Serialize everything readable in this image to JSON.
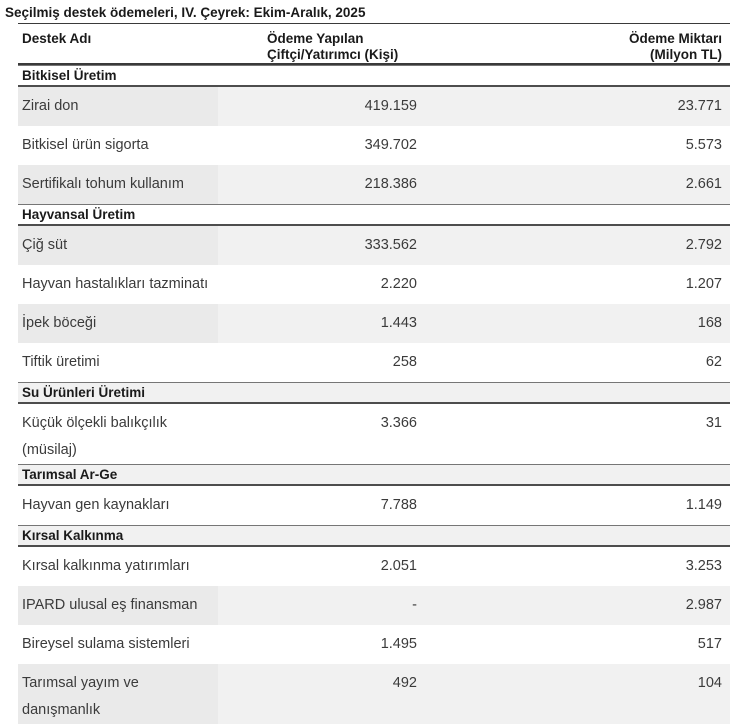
{
  "title": "Seçilmiş destek ödemeleri, IV. Çeyrek: Ekim-Aralık, 2025",
  "columns": {
    "name": "Destek Adı",
    "payees_line1": "Ödeme Yapılan",
    "payees_line2": "Çiftçi/Yatırımcı (Kişi)",
    "amount_line1": "Ödeme Miktarı",
    "amount_line2": "(Milyon TL)"
  },
  "sections": [
    {
      "header": "Bitkisel Üretim",
      "rows": [
        {
          "label": [
            "Zirai don"
          ],
          "payees": "419.159",
          "amount": "23.771"
        },
        {
          "label": [
            "Bitkisel ürün sigorta"
          ],
          "payees": "349.702",
          "amount": "5.573"
        },
        {
          "label": [
            "Sertifikalı tohum kullanım"
          ],
          "payees": "218.386",
          "amount": "2.661"
        }
      ]
    },
    {
      "header": "Hayvansal Üretim",
      "rows": [
        {
          "label": [
            "Çiğ süt"
          ],
          "payees": "333.562",
          "amount": "2.792"
        },
        {
          "label": [
            "Hayvan hastalıkları tazminatı"
          ],
          "payees": "2.220",
          "amount": "1.207"
        },
        {
          "label": [
            "İpek böceği"
          ],
          "payees": "1.443",
          "amount": "168"
        },
        {
          "label": [
            "Tiftik üretimi"
          ],
          "payees": "258",
          "amount": "62"
        }
      ]
    },
    {
      "header": "Su Ürünleri Üretimi",
      "rows": [
        {
          "label": [
            "Küçük ölçekli balıkçılık",
            "(müsilaj)"
          ],
          "payees": "3.366",
          "amount": "31"
        }
      ]
    },
    {
      "header": "Tarımsal Ar-Ge",
      "rows": [
        {
          "label": [
            "Hayvan gen kaynakları"
          ],
          "payees": "7.788",
          "amount": "1.149"
        }
      ]
    },
    {
      "header": "Kırsal Kalkınma",
      "rows": [
        {
          "label": [
            "Kırsal kalkınma yatırımları"
          ],
          "payees": "2.051",
          "amount": "3.253"
        },
        {
          "label": [
            "IPARD ulusal eş finansman"
          ],
          "payees": "-",
          "amount": "2.987"
        },
        {
          "label": [
            "Bireysel sulama sistemleri"
          ],
          "payees": "1.495",
          "amount": "517"
        },
        {
          "label": [
            "Tarımsal yayım ve",
            "danışmanlık"
          ],
          "payees": "492",
          "amount": "104"
        }
      ]
    }
  ],
  "colors": {
    "row_stripe": "#f1f1f1",
    "row_stripe_first_col": "#eaeaea",
    "rule_strong": "#3a3a3a",
    "rule_light": "#767676",
    "text_body": "#3b3b3b",
    "text_bold": "#1a1a1a"
  }
}
